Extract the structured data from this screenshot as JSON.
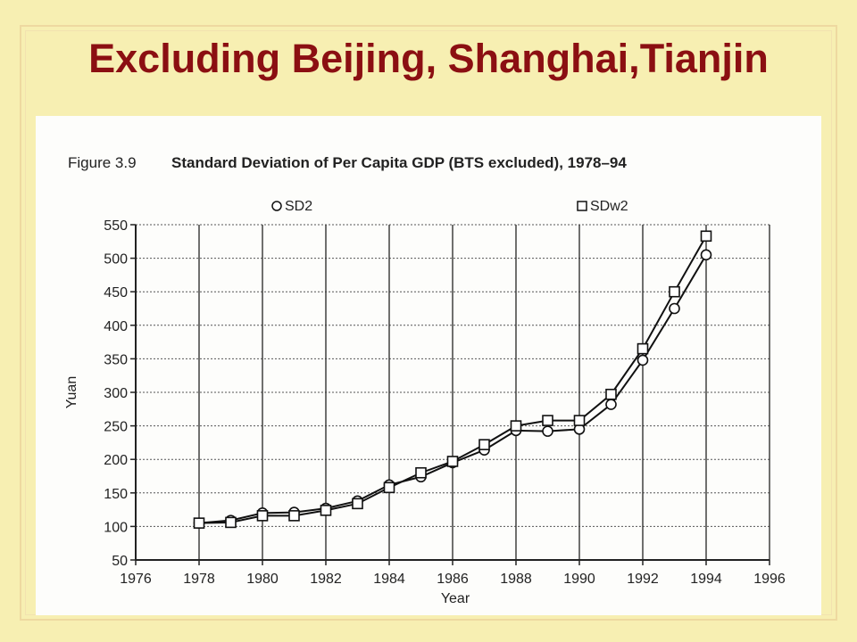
{
  "slide": {
    "title": "Excluding Beijing, Shanghai,Tianjin"
  },
  "figure": {
    "label": "Figure 3.9",
    "caption": "Standard Deviation of Per Capita GDP (BTS excluded), 1978–94"
  },
  "colors": {
    "background": "#f7efb2",
    "title": "#8b0f12",
    "panel": "#fdfdfb",
    "ink": "#222222"
  },
  "chart_data": {
    "type": "line",
    "title": "Standard Deviation of Per Capita GDP (BTS excluded), 1978–94",
    "xlabel": "Year",
    "ylabel": "Yuan",
    "xlim": [
      1976,
      1996
    ],
    "ylim": [
      50,
      550
    ],
    "xticks": [
      1976,
      1978,
      1980,
      1982,
      1984,
      1986,
      1988,
      1990,
      1992,
      1994,
      1996
    ],
    "yticks": [
      50,
      100,
      150,
      200,
      250,
      300,
      350,
      400,
      450,
      500,
      550
    ],
    "grid": true,
    "legend_position": "top",
    "x": [
      1978,
      1979,
      1980,
      1981,
      1982,
      1983,
      1984,
      1985,
      1986,
      1987,
      1988,
      1989,
      1990,
      1991,
      1992,
      1993,
      1994
    ],
    "series": [
      {
        "name": "SD2",
        "marker": "circle",
        "values": [
          105,
          109,
          120,
          121,
          127,
          138,
          162,
          174,
          195,
          214,
          243,
          242,
          245,
          282,
          348,
          425,
          505
        ]
      },
      {
        "name": "SDw2",
        "marker": "square",
        "values": [
          105,
          106,
          116,
          116,
          124,
          134,
          158,
          180,
          197,
          222,
          250,
          258,
          258,
          297,
          365,
          450,
          533
        ]
      }
    ]
  }
}
